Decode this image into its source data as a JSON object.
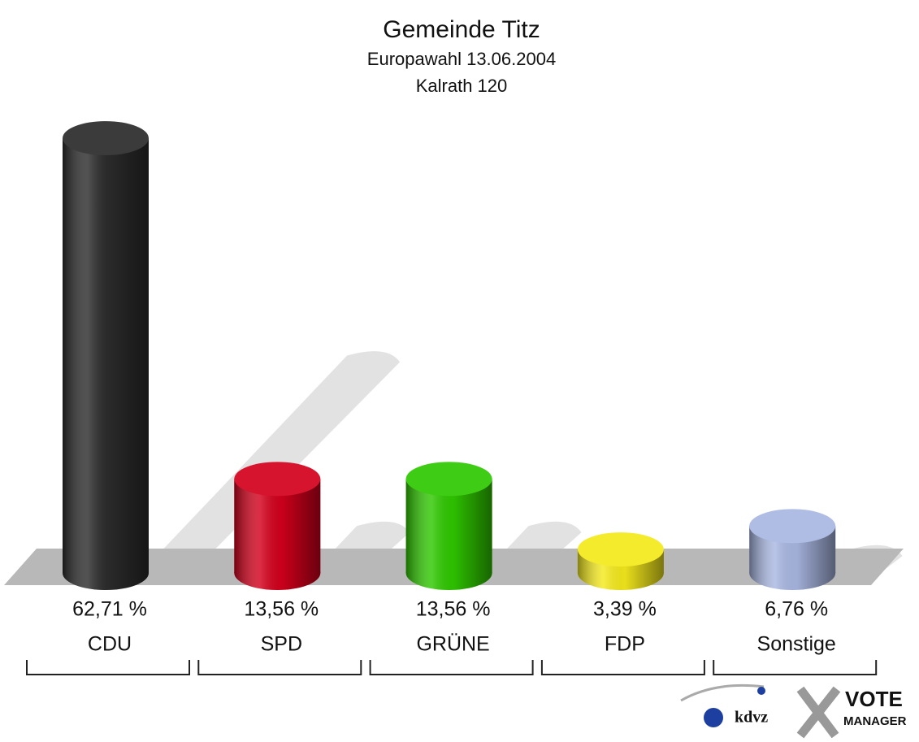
{
  "chart_data": {
    "type": "bar",
    "title": "Gemeinde Titz",
    "subtitle": "Europawahl 13.06.2004",
    "annotation": "Kalrath 120",
    "categories": [
      "CDU",
      "SPD",
      "GRÜNE",
      "FDP",
      "Sonstige"
    ],
    "values": [
      62.71,
      13.56,
      13.56,
      3.39,
      6.76
    ],
    "value_labels": [
      "62,71 %",
      "13,56 %",
      "13,56 %",
      "3,39 %",
      "6,76 %"
    ],
    "colors": [
      "#2b2b2b",
      "#d3001c",
      "#2fc800",
      "#f5ea1c",
      "#a9b7e2"
    ],
    "logos": [
      "kdvz",
      "VOTE",
      "MANAGER"
    ]
  }
}
